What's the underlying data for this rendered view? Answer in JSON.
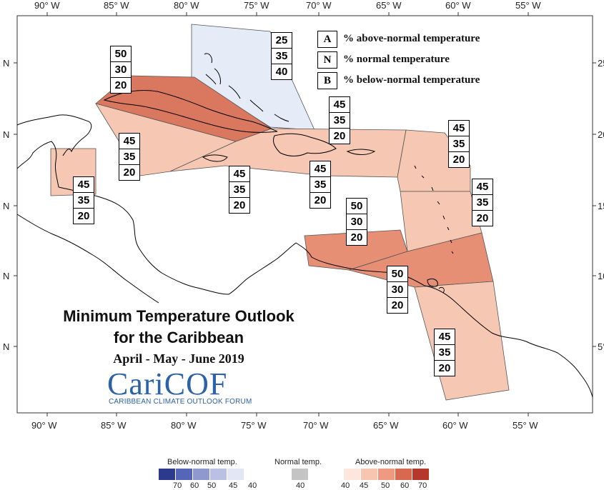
{
  "map": {
    "title_line1": "Minimum Temperature Outlook",
    "title_line2": "for the Caribbean",
    "period": "April - May - June 2019",
    "logo_text": "CariCOF",
    "logo_subtitle": "CARIBBEAN CLIMATE OUTLOOK FORUM",
    "longitude_labels": [
      "90° W",
      "85° W",
      "80° W",
      "75° W",
      "70° W",
      "65° W",
      "60° W",
      "55° W"
    ],
    "latitude_labels_left": [
      "N",
      "N",
      "N",
      "N",
      "N"
    ],
    "latitude_labels_right": [
      "25°",
      "20°",
      "15°",
      "10°",
      "5°"
    ]
  },
  "key": [
    {
      "letter": "A",
      "text": "% above-normal temperature"
    },
    {
      "letter": "N",
      "text": "% normal temperature"
    },
    {
      "letter": "B",
      "text": "% below-normal temperature"
    }
  ],
  "regions": [
    {
      "name": "bahamas",
      "above": "25",
      "normal": "35",
      "below": "40",
      "fill": "#e6ecf7"
    },
    {
      "name": "cuba",
      "above": "50",
      "normal": "30",
      "below": "20",
      "fill": "#d9785f"
    },
    {
      "name": "belize",
      "above": "45",
      "normal": "35",
      "below": "20",
      "fill": "#f6c7b2"
    },
    {
      "name": "cayman-jamaica-west",
      "above": "45",
      "normal": "35",
      "below": "20",
      "fill": "#f6c7b2"
    },
    {
      "name": "jamaica",
      "above": "45",
      "normal": "35",
      "below": "20",
      "fill": "#f6c7b2"
    },
    {
      "name": "hispaniola",
      "above": "45",
      "normal": "35",
      "below": "20",
      "fill": "#f6c7b2"
    },
    {
      "name": "puerto-rico",
      "above": "45",
      "normal": "35",
      "below": "20",
      "fill": "#f6c7b2"
    },
    {
      "name": "northern-leewards",
      "above": "45",
      "normal": "35",
      "below": "20",
      "fill": "#f6c7b2"
    },
    {
      "name": "windwards",
      "above": "45",
      "normal": "35",
      "below": "20",
      "fill": "#f6c7b2"
    },
    {
      "name": "abc-islands",
      "above": "50",
      "normal": "30",
      "below": "20",
      "fill": "#e68f74"
    },
    {
      "name": "trinidad-tobago",
      "above": "50",
      "normal": "30",
      "below": "20",
      "fill": "#e68f74"
    },
    {
      "name": "guianas",
      "above": "45",
      "normal": "35",
      "below": "20",
      "fill": "#f6c7b2"
    }
  ],
  "legend": {
    "below_caption": "Below-normal temp.",
    "normal_caption": "Normal temp.",
    "above_caption": "Above-normal temp.",
    "below_ticks": [
      "70",
      "60",
      "50",
      "45",
      "40"
    ],
    "normal_ticks": [
      "40"
    ],
    "above_ticks": [
      "40",
      "45",
      "50",
      "60",
      "70"
    ],
    "below_colors": [
      "#2b3a8c",
      "#5566b8",
      "#8f99cf",
      "#b9c0e3",
      "#e3e7f5"
    ],
    "normal_color": "#c4c4c4",
    "above_colors": [
      "#fde6dc",
      "#f8c5b0",
      "#ee9980",
      "#d9694e",
      "#b5382a"
    ]
  }
}
